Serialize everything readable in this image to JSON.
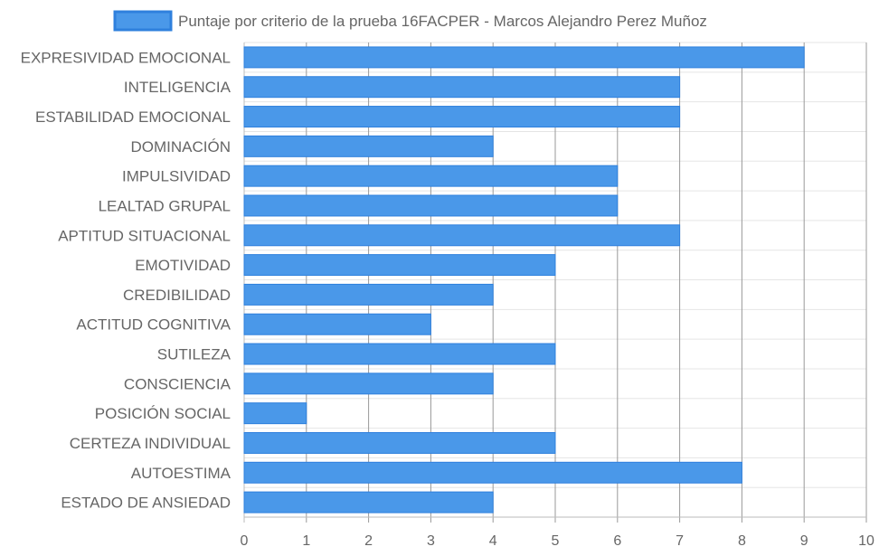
{
  "chart_data": {
    "type": "bar",
    "orientation": "horizontal",
    "legend": {
      "position": "top",
      "label": "Puntaje por criterio de la prueba 16FACPER - Marcos Alejandro Perez  Muñoz"
    },
    "categories": [
      "EXPRESIVIDAD EMOCIONAL",
      "INTELIGENCIA",
      "ESTABILIDAD EMOCIONAL",
      "DOMINACIÓN",
      "IMPULSIVIDAD",
      "LEALTAD GRUPAL",
      "APTITUD SITUACIONAL",
      "EMOTIVIDAD",
      "CREDIBILIDAD",
      "ACTITUD COGNITIVA",
      "SUTILEZA",
      "CONSCIENCIA",
      "POSICIÓN SOCIAL",
      "CERTEZA INDIVIDUAL",
      "AUTOESTIMA",
      "ESTADO DE ANSIEDAD"
    ],
    "series": [
      {
        "name": "Puntaje por criterio de la prueba 16FACPER - Marcos Alejandro Perez  Muñoz",
        "values": [
          9,
          7,
          7,
          4,
          6,
          6,
          7,
          5,
          4,
          3,
          5,
          4,
          1,
          5,
          8,
          4
        ]
      }
    ],
    "xlim": [
      0,
      10
    ],
    "xticks": [
      0,
      1,
      2,
      3,
      4,
      5,
      6,
      7,
      8,
      9,
      10
    ],
    "grid": true,
    "colors": {
      "bar_fill": "#4a98e9",
      "bar_border": "#2f80dd",
      "grid": "#e5e5e5",
      "grid_major": "#999999",
      "text": "#666666"
    }
  }
}
